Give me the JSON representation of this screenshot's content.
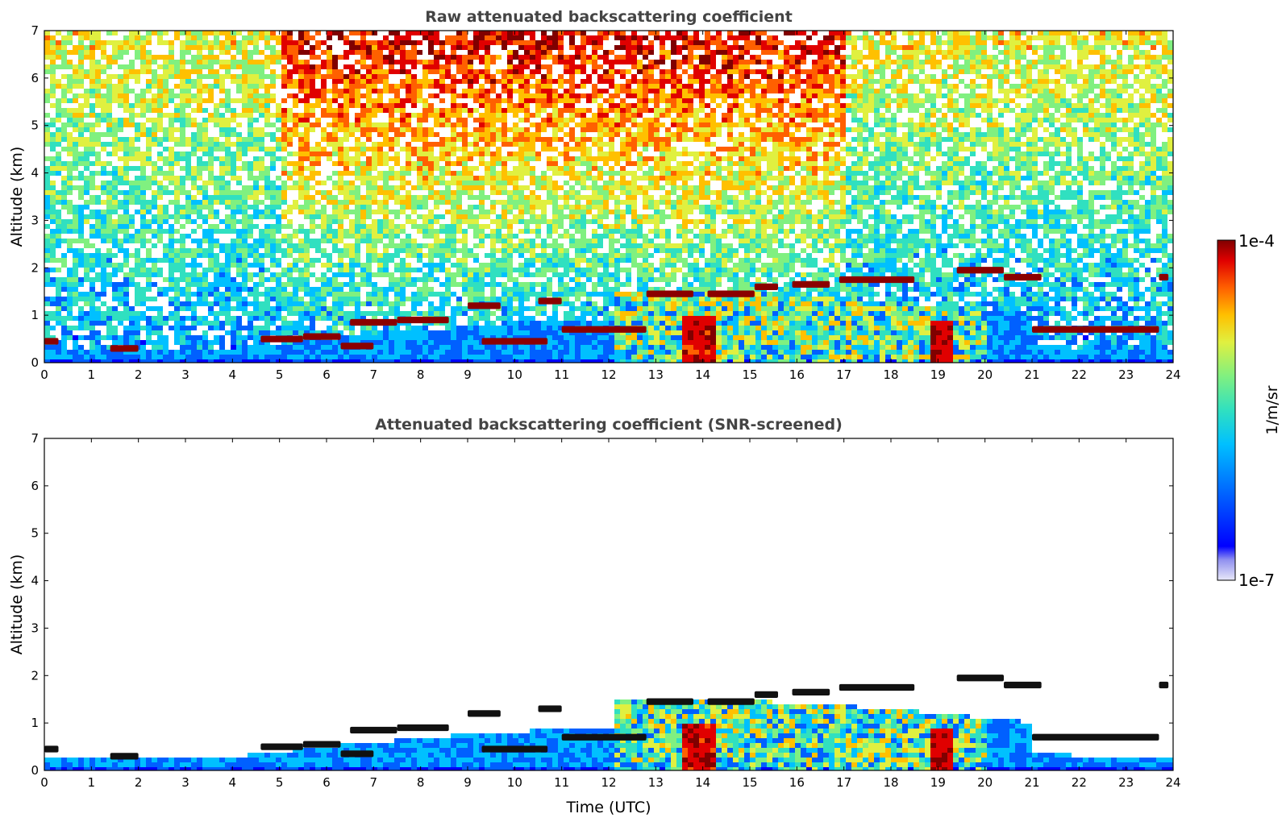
{
  "chart_data": [
    {
      "type": "heatmap",
      "title": "Raw attenuated backscattering coefficient",
      "xlabel": "",
      "ylabel": "Altitude (km)",
      "xlim": [
        0,
        24
      ],
      "ylim": [
        0,
        7
      ],
      "x_ticks": [
        "0",
        "1",
        "2",
        "3",
        "4",
        "5",
        "6",
        "7",
        "8",
        "9",
        "10",
        "11",
        "12",
        "13",
        "14",
        "15",
        "16",
        "17",
        "18",
        "19",
        "20",
        "21",
        "22",
        "23",
        "24"
      ],
      "y_ticks": [
        "0",
        "1",
        "2",
        "3",
        "4",
        "5",
        "6",
        "7"
      ],
      "cloud_layers": [
        {
          "t_start": 0.0,
          "t_end": 0.3,
          "alt_km": 0.45
        },
        {
          "t_start": 1.4,
          "t_end": 2.0,
          "alt_km": 0.3
        },
        {
          "t_start": 4.6,
          "t_end": 5.5,
          "alt_km": 0.5
        },
        {
          "t_start": 5.5,
          "t_end": 6.3,
          "alt_km": 0.55
        },
        {
          "t_start": 6.3,
          "t_end": 7.0,
          "alt_km": 0.35
        },
        {
          "t_start": 6.5,
          "t_end": 7.5,
          "alt_km": 0.85
        },
        {
          "t_start": 7.5,
          "t_end": 8.6,
          "alt_km": 0.9
        },
        {
          "t_start": 9.0,
          "t_end": 9.7,
          "alt_km": 1.2
        },
        {
          "t_start": 9.3,
          "t_end": 10.7,
          "alt_km": 0.45
        },
        {
          "t_start": 10.5,
          "t_end": 11.0,
          "alt_km": 1.3
        },
        {
          "t_start": 11.0,
          "t_end": 12.8,
          "alt_km": 0.7
        },
        {
          "t_start": 12.8,
          "t_end": 13.8,
          "alt_km": 1.45
        },
        {
          "t_start": 14.1,
          "t_end": 15.1,
          "alt_km": 1.45
        },
        {
          "t_start": 15.1,
          "t_end": 15.6,
          "alt_km": 1.6
        },
        {
          "t_start": 15.9,
          "t_end": 16.7,
          "alt_km": 1.65
        },
        {
          "t_start": 16.9,
          "t_end": 18.5,
          "alt_km": 1.75
        },
        {
          "t_start": 19.4,
          "t_end": 20.4,
          "alt_km": 1.95
        },
        {
          "t_start": 20.4,
          "t_end": 21.2,
          "alt_km": 1.8
        },
        {
          "t_start": 21.0,
          "t_end": 23.7,
          "alt_km": 0.7
        },
        {
          "t_start": 23.7,
          "t_end": 23.9,
          "alt_km": 1.8
        }
      ]
    },
    {
      "type": "heatmap",
      "title": "Attenuated backscattering coefficient (SNR-screened)",
      "xlabel": "Time (UTC)",
      "ylabel": "Altitude (km)",
      "xlim": [
        0,
        24
      ],
      "ylim": [
        0,
        7
      ],
      "x_ticks": [
        "0",
        "1",
        "2",
        "3",
        "4",
        "5",
        "6",
        "7",
        "8",
        "9",
        "10",
        "11",
        "12",
        "13",
        "14",
        "15",
        "16",
        "17",
        "18",
        "19",
        "20",
        "21",
        "22",
        "23",
        "24"
      ],
      "y_ticks": [
        "0",
        "1",
        "2",
        "3",
        "4",
        "5",
        "6",
        "7"
      ]
    }
  ],
  "colorbar": {
    "label": "1/m/sr",
    "max_label": "1e-4",
    "min_label": "1e-7",
    "colormap": [
      "#e8e8f8",
      "#0000ff",
      "#0060ff",
      "#00c0ff",
      "#30e0c0",
      "#80f080",
      "#e0f040",
      "#ffc000",
      "#ff6000",
      "#e00000",
      "#800000"
    ]
  }
}
